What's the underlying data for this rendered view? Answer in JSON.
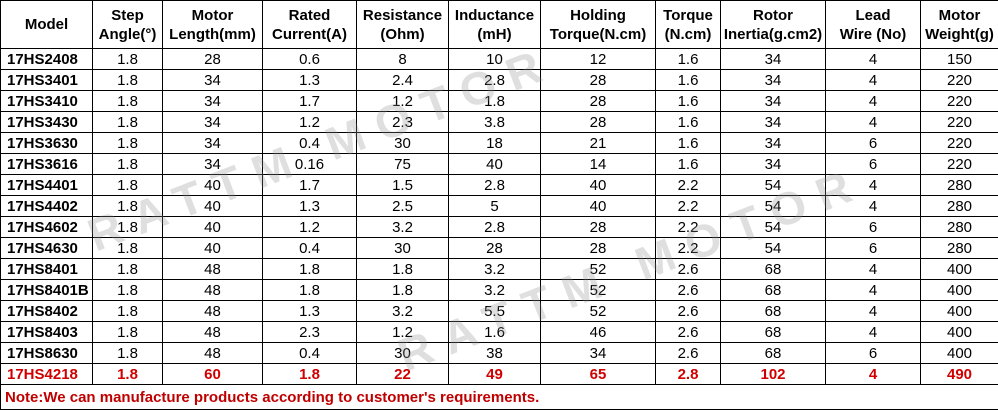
{
  "header": [
    "Model",
    [
      "Step",
      "Angle(°)"
    ],
    [
      "Motor",
      "Length(mm)"
    ],
    [
      "Rated",
      "Current(A)"
    ],
    [
      "Resistance",
      "(Ohm)"
    ],
    [
      "Inductance",
      "(mH)"
    ],
    [
      "Holding",
      "Torque(N.cm)"
    ],
    [
      "Torque",
      "(N.cm)"
    ],
    [
      "Rotor",
      "Inertia(g.cm2)"
    ],
    [
      "Lead",
      "Wire  (No)"
    ],
    [
      "Motor",
      "Weight(g)"
    ]
  ],
  "rows": [
    [
      "17HS2408",
      "1.8",
      "28",
      "0.6",
      "8",
      "10",
      "12",
      "1.6",
      "34",
      "4",
      "150"
    ],
    [
      "17HS3401",
      "1.8",
      "34",
      "1.3",
      "2.4",
      "2.8",
      "28",
      "1.6",
      "34",
      "4",
      "220"
    ],
    [
      "17HS3410",
      "1.8",
      "34",
      "1.7",
      "1.2",
      "1.8",
      "28",
      "1.6",
      "34",
      "4",
      "220"
    ],
    [
      "17HS3430",
      "1.8",
      "34",
      "1.2",
      "2.3",
      "3.8",
      "28",
      "1.6",
      "34",
      "4",
      "220"
    ],
    [
      "17HS3630",
      "1.8",
      "34",
      "0.4",
      "30",
      "18",
      "21",
      "1.6",
      "34",
      "6",
      "220"
    ],
    [
      "17HS3616",
      "1.8",
      "34",
      "0.16",
      "75",
      "40",
      "14",
      "1.6",
      "34",
      "6",
      "220"
    ],
    [
      "17HS4401",
      "1.8",
      "40",
      "1.7",
      "1.5",
      "2.8",
      "40",
      "2.2",
      "54",
      "4",
      "280"
    ],
    [
      "17HS4402",
      "1.8",
      "40",
      "1.3",
      "2.5",
      "5",
      "40",
      "2.2",
      "54",
      "4",
      "280"
    ],
    [
      "17HS4602",
      "1.8",
      "40",
      "1.2",
      "3.2",
      "2.8",
      "28",
      "2.2",
      "54",
      "6",
      "280"
    ],
    [
      "17HS4630",
      "1.8",
      "40",
      "0.4",
      "30",
      "28",
      "28",
      "2.2",
      "54",
      "6",
      "280"
    ],
    [
      "17HS8401",
      "1.8",
      "48",
      "1.8",
      "1.8",
      "3.2",
      "52",
      "2.6",
      "68",
      "4",
      "400"
    ],
    [
      "17HS8401B",
      "1.8",
      "48",
      "1.8",
      "1.8",
      "3.2",
      "52",
      "2.6",
      "68",
      "4",
      "400"
    ],
    [
      "17HS8402",
      "1.8",
      "48",
      "1.3",
      "3.2",
      "5.5",
      "52",
      "2.6",
      "68",
      "4",
      "400"
    ],
    [
      "17HS8403",
      "1.8",
      "48",
      "2.3",
      "1.2",
      "1.6",
      "46",
      "2.6",
      "68",
      "4",
      "400"
    ],
    [
      "17HS8630",
      "1.8",
      "48",
      "0.4",
      "30",
      "38",
      "34",
      "2.6",
      "68",
      "6",
      "400"
    ],
    [
      "17HS4218",
      "1.8",
      "60",
      "1.8",
      "22",
      "49",
      "65",
      "2.8",
      "102",
      "4",
      "490"
    ]
  ],
  "note": "Note:We can manufacture products according to customer's requirements.",
  "watermark": "RATTM MOTOR"
}
